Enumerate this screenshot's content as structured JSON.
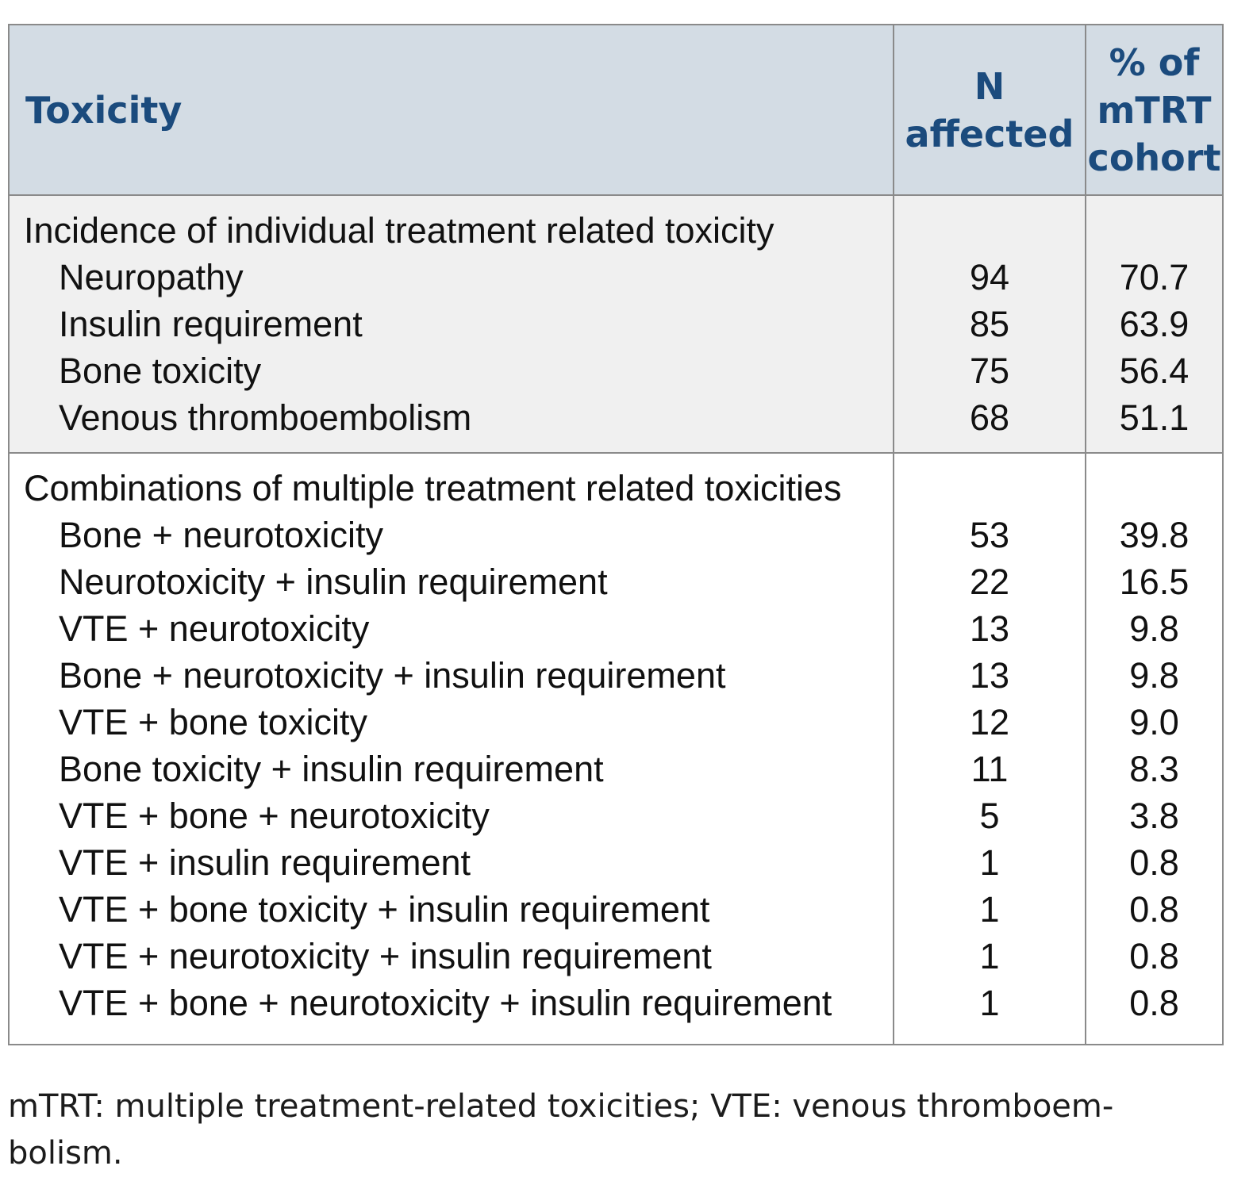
{
  "theme": {
    "header_bg": "#d3dce4",
    "header_text": "#1b4b7d",
    "section_alt_bg": "#f0f0f0",
    "section_bg": "#ffffff",
    "border_color": "#8a8a8a",
    "body_text": "#111111"
  },
  "table": {
    "columns": [
      {
        "label": "Toxicity"
      },
      {
        "label": "N\naffected"
      },
      {
        "label": "% of\nmTRT\ncohort"
      }
    ],
    "sections": [
      {
        "title": "Incidence of individual treatment related toxicity",
        "rows": [
          {
            "label": "Neuropathy",
            "n": "94",
            "pct": "70.7"
          },
          {
            "label": "Insulin requirement",
            "n": "85",
            "pct": "63.9"
          },
          {
            "label": "Bone toxicity",
            "n": "75",
            "pct": "56.4"
          },
          {
            "label": "Venous thromboembolism",
            "n": "68",
            "pct": "51.1"
          }
        ]
      },
      {
        "title": "Combinations of multiple treatment related toxicities",
        "rows": [
          {
            "label": "Bone + neurotoxicity",
            "n": "53",
            "pct": "39.8"
          },
          {
            "label": "Neurotoxicity + insulin requirement",
            "n": "22",
            "pct": "16.5"
          },
          {
            "label": "VTE + neurotoxicity",
            "n": "13",
            "pct": "9.8"
          },
          {
            "label": "Bone + neurotoxicity + insulin requirement",
            "n": "13",
            "pct": "9.8"
          },
          {
            "label": "VTE + bone toxicity",
            "n": "12",
            "pct": "9.0"
          },
          {
            "label": "Bone toxicity + insulin requirement",
            "n": "11",
            "pct": "8.3"
          },
          {
            "label": "VTE + bone + neurotoxicity",
            "n": "5",
            "pct": "3.8"
          },
          {
            "label": "VTE + insulin requirement",
            "n": "1",
            "pct": "0.8"
          },
          {
            "label": "VTE + bone toxicity + insulin requirement",
            "n": "1",
            "pct": "0.8"
          },
          {
            "label": "VTE + neurotoxicity + insulin requirement",
            "n": "1",
            "pct": "0.8"
          },
          {
            "label": "VTE + bone + neurotoxicity + insulin requirement",
            "n": "1",
            "pct": "0.8"
          }
        ]
      }
    ]
  },
  "footnote": "mTRT: multiple treatment-related toxicities; VTE: venous thromboem-\nbolism."
}
